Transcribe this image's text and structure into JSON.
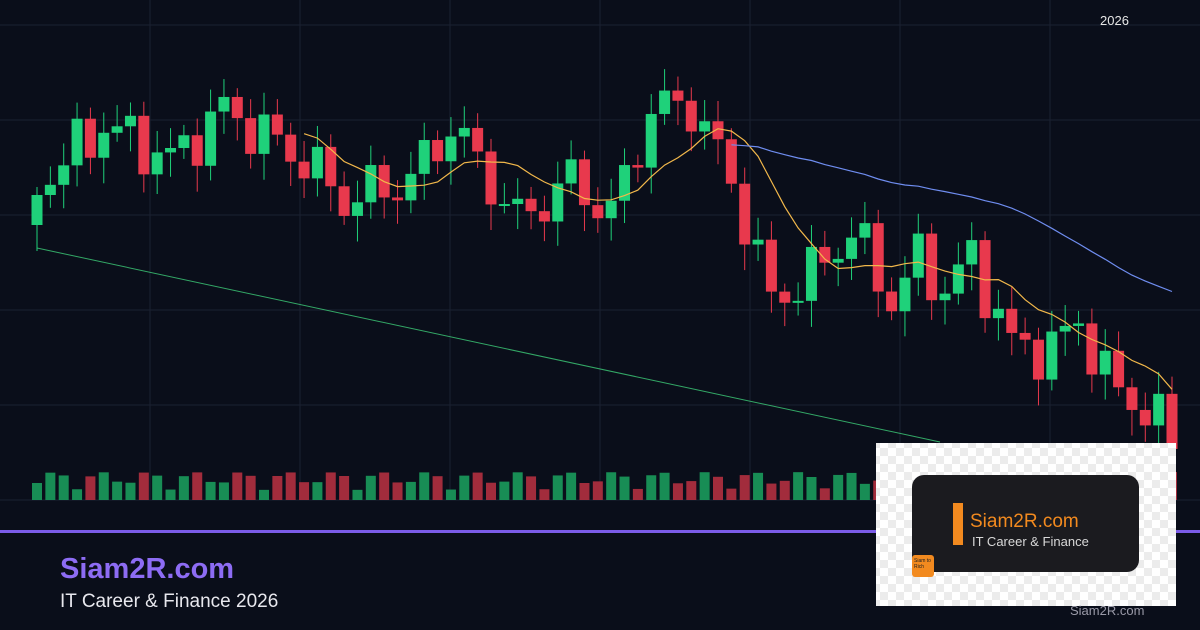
{
  "header": {
    "year": "2026"
  },
  "footer": {
    "brand": "Siam2R.com",
    "tagline": "IT Career & Finance 2026"
  },
  "logo": {
    "brand": "Siam2R.com",
    "tagline": "IT Career & Finance",
    "badge": "Siam to Rich"
  },
  "watermark": "Siam2R.com"
}
